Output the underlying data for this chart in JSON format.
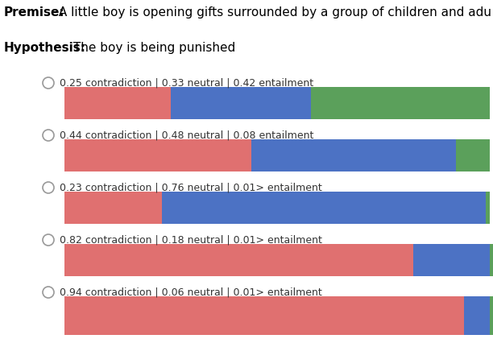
{
  "premise_bold": "Premise:",
  "premise_rest": " A little boy is opening gifts surrounded by a group of children and adu",
  "hypothesis_bold": "Hypothesis:",
  "hypothesis_rest": " The boy is being punished",
  "bars": [
    {
      "contradiction": 0.25,
      "neutral": 0.33,
      "entailment": 0.42,
      "label": "0.25 contradiction | 0.33 neutral | 0.42 entailment"
    },
    {
      "contradiction": 0.44,
      "neutral": 0.48,
      "entailment": 0.08,
      "label": "0.44 contradiction | 0.48 neutral | 0.08 entailment"
    },
    {
      "contradiction": 0.23,
      "neutral": 0.76,
      "entailment": 0.01,
      "label": "0.23 contradiction | 0.76 neutral | 0.01> entailment"
    },
    {
      "contradiction": 0.82,
      "neutral": 0.18,
      "entailment": 0.01,
      "label": "0.82 contradiction | 0.18 neutral | 0.01> entailment"
    },
    {
      "contradiction": 0.94,
      "neutral": 0.06,
      "entailment": 0.01,
      "label": "0.94 contradiction | 0.06 neutral | 0.01> entailment"
    }
  ],
  "color_contradiction": "#E07070",
  "color_neutral": "#4C72C4",
  "color_entailment": "#5BA05B",
  "background": "#FFFFFF",
  "fontsize_header": 11,
  "fontsize_label": 9,
  "fontsize_bar_label": 9
}
